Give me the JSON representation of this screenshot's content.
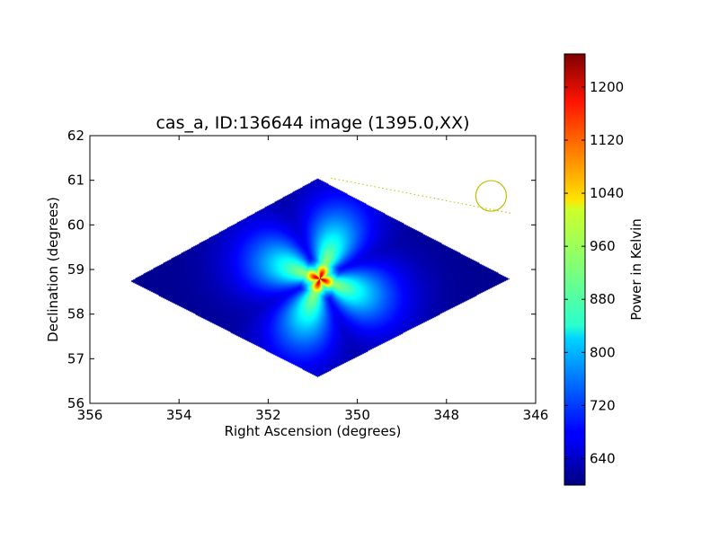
{
  "chart_data": {
    "type": "heatmap",
    "title": "cas_a, ID:136644 image (1395.0,XX)",
    "xlabel": "Right Ascension (degrees)",
    "ylabel": "Declination (degrees)",
    "xlim": [
      356,
      346
    ],
    "ylim": [
      56,
      62
    ],
    "xticks": [
      356,
      354,
      352,
      350,
      348,
      346
    ],
    "yticks": [
      56,
      57,
      58,
      59,
      60,
      61,
      62
    ],
    "colormap": "jet",
    "colorbar": {
      "label": "Power in Kelvin",
      "range": [
        600,
        1250
      ],
      "ticks": [
        640,
        720,
        800,
        880,
        960,
        1040,
        1120,
        1200
      ]
    },
    "image_footprint": {
      "corners": [
        [
          350.9,
          61.05
        ],
        [
          346.6,
          58.8
        ],
        [
          350.9,
          56.6
        ],
        [
          355.1,
          58.75
        ]
      ],
      "background_value": 610
    },
    "source": {
      "ra": 350.85,
      "dec": 58.8,
      "peak_value": 1230
    },
    "beam_circle": {
      "ra": 347.0,
      "dec": 60.65,
      "color": "#bfbf00"
    },
    "beam_line": {
      "from": [
        350.6,
        61.05
      ],
      "to": [
        346.5,
        60.25
      ],
      "color": "#bfbf00"
    }
  }
}
